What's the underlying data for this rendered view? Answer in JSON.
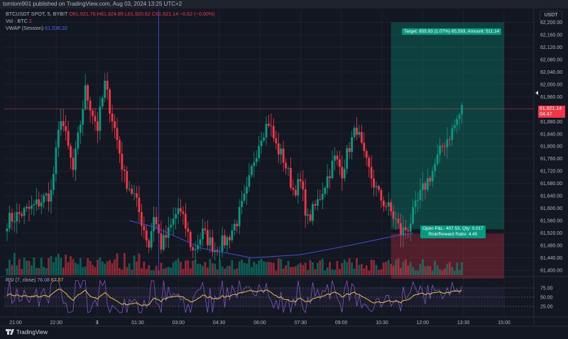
{
  "header": {
    "published": "tomtom901 published on TradingView.com, Aug 03, 2024 13:25 UTC+2"
  },
  "legend": {
    "symbol": "BTCUSDT SPOT, 5, BYBIT",
    "ohlc": "O61,921.76 H61,924.85 L61,920.62 C61,921.14 −0.62 (−0.00%)",
    "vol_label": "Vol · BTC",
    "vol_value": "2",
    "vwap_label": "VWAP (Session)",
    "vwap_value": "61,536.32"
  },
  "currency": "USDT",
  "last_price": {
    "price": "61,921.14",
    "countdown": "04:47"
  },
  "position": {
    "target_text": "Target: 655.93 (1.07%) 65,593, Amount: 511.14",
    "pnl_text": "Open P&L: 407.53, Qty: 0.017",
    "rr_text": "Risk/Reward Ratio: 4.45"
  },
  "rsi": {
    "label": "RSI (7, close)",
    "value1": "76.08",
    "value2": "67.57"
  },
  "brand": "TradingView",
  "colors": {
    "up": "#089981",
    "down": "#f23645",
    "vwap": "#3f51d8",
    "rsi": "#7e57c2",
    "rsi_ma": "#e8c341",
    "bg": "#131722"
  },
  "chart_data": {
    "type": "candlestick",
    "symbol": "BTCUSDT SPOT, 5, BYBIT",
    "y_ticks": [
      "62,200.00",
      "62,160.00",
      "62,120.00",
      "62,080.00",
      "62,040.00",
      "62,000.00",
      "61,960.00",
      "61,920.00",
      "61,880.00",
      "61,840.00",
      "61,800.00",
      "61,760.00",
      "61,720.00",
      "61,680.00",
      "61,640.00",
      "61,600.00",
      "61,560.00",
      "61,520.00",
      "61,480.00",
      "61,440.00",
      "61,400.00"
    ],
    "ylim": [
      61384,
      62240
    ],
    "x_ticks": [
      "21:00",
      "22:30",
      "3",
      "01:30",
      "03:00",
      "04:30",
      "06:00",
      "07:30",
      "09:00",
      "10:30",
      "12:00",
      "13:30",
      "15:00"
    ],
    "rsi_ticks": [
      "75.00",
      "50.00",
      "25.00"
    ],
    "anchors": [
      [
        0,
        61560
      ],
      [
        10,
        61600
      ],
      [
        18,
        61650
      ],
      [
        22,
        61900
      ],
      [
        27,
        61720
      ],
      [
        32,
        61980
      ],
      [
        37,
        61860
      ],
      [
        40,
        62000
      ],
      [
        45,
        61820
      ],
      [
        48,
        61700
      ],
      [
        52,
        61640
      ],
      [
        55,
        61560
      ],
      [
        58,
        61480
      ],
      [
        60,
        61580
      ],
      [
        63,
        61480
      ],
      [
        66,
        61520
      ],
      [
        70,
        61600
      ],
      [
        73,
        61540
      ],
      [
        76,
        61460
      ],
      [
        80,
        61520
      ],
      [
        85,
        61470
      ],
      [
        90,
        61500
      ],
      [
        94,
        61560
      ],
      [
        98,
        61650
      ],
      [
        101,
        61760
      ],
      [
        104,
        61840
      ],
      [
        107,
        61880
      ],
      [
        110,
        61800
      ],
      [
        113,
        61760
      ],
      [
        117,
        61660
      ],
      [
        120,
        61680
      ],
      [
        123,
        61560
      ],
      [
        127,
        61620
      ],
      [
        131,
        61700
      ],
      [
        134,
        61760
      ],
      [
        137,
        61720
      ],
      [
        140,
        61800
      ],
      [
        143,
        61860
      ],
      [
        146,
        61760
      ],
      [
        149,
        61700
      ],
      [
        152,
        61640
      ],
      [
        156,
        61600
      ],
      [
        159,
        61560
      ],
      [
        161,
        61520
      ],
      [
        164,
        61540
      ],
      [
        167,
        61600
      ],
      [
        170,
        61660
      ],
      [
        174,
        61720
      ],
      [
        178,
        61800
      ],
      [
        182,
        61850
      ],
      [
        186,
        61920
      ]
    ],
    "candle_count": 187,
    "vwap": [
      [
        50,
        61560
      ],
      [
        60,
        61540
      ],
      [
        80,
        61470
      ],
      [
        100,
        61440
      ],
      [
        120,
        61450
      ],
      [
        140,
        61480
      ],
      [
        158,
        61510
      ],
      [
        166,
        61520
      ]
    ],
    "position": {
      "entry": 61921.14,
      "target": 62200,
      "stop": 61400
    }
  }
}
